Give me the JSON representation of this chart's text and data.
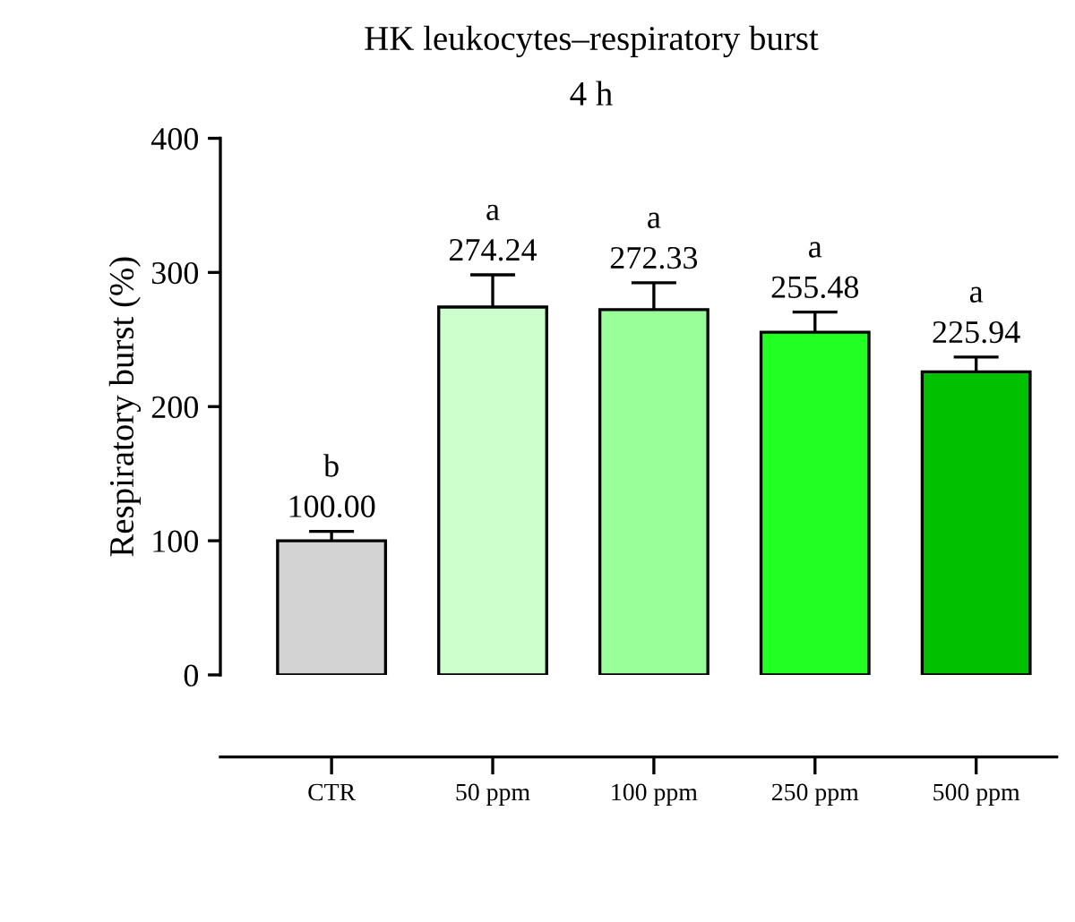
{
  "chart_data": {
    "type": "bar",
    "title": "HK leukocytes–respiratory burst",
    "subtitle": "4 h",
    "ylabel": "Respiratory burst (%)",
    "categories": [
      "CTR",
      "50 ppm",
      "100 ppm",
      "250 ppm",
      "500 ppm"
    ],
    "values": [
      100.0,
      274.24,
      272.33,
      255.48,
      225.94
    ],
    "errors": [
      7,
      24,
      20,
      15,
      11
    ],
    "colors": [
      "#d3d3d3",
      "#ccffcc",
      "#99ff99",
      "#22ff22",
      "#00c000"
    ],
    "value_labels": [
      "b\n100.00",
      "a\n274.24",
      "a\n272.33",
      "a\n255.48",
      "a\n225.94"
    ],
    "ylim": [
      0,
      400
    ],
    "yticks": [
      0,
      100,
      200,
      300,
      400
    ],
    "grid": false,
    "legend": false
  }
}
